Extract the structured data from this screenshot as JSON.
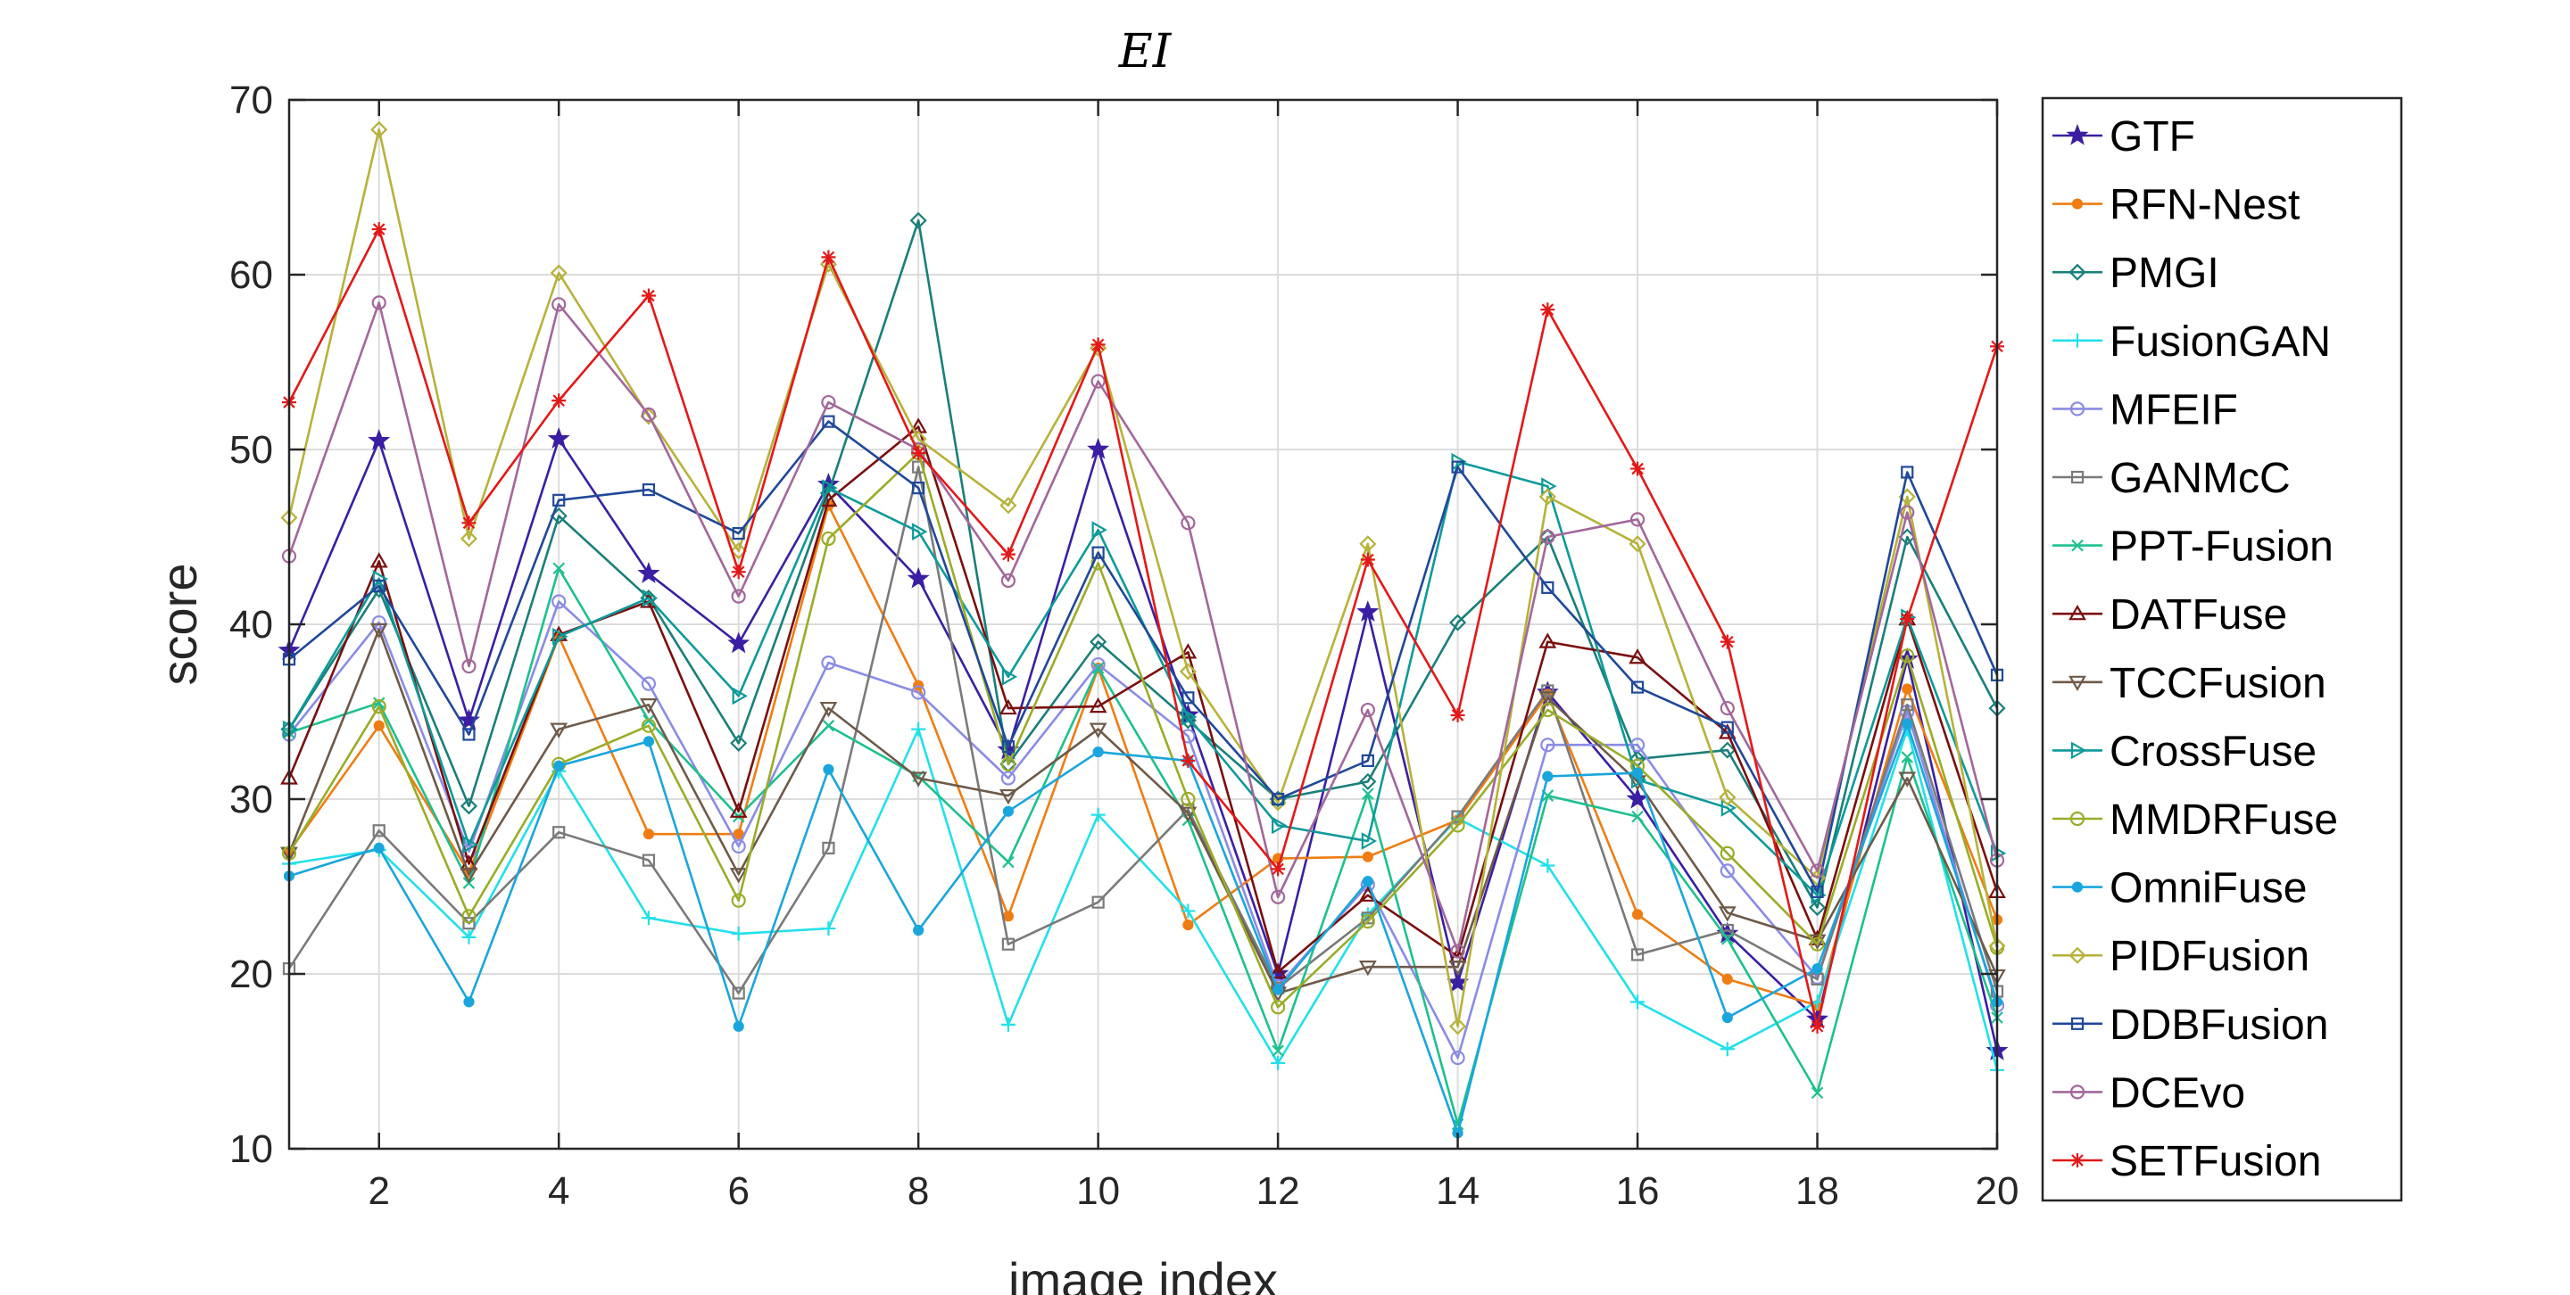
{
  "chart_data": {
    "type": "line",
    "title": "EI",
    "xlabel": "image index",
    "ylabel": "score",
    "xlim": [
      1,
      20
    ],
    "ylim": [
      10,
      70
    ],
    "xticks": [
      2,
      4,
      6,
      8,
      10,
      12,
      14,
      16,
      18,
      20
    ],
    "yticks": [
      10,
      20,
      30,
      40,
      50,
      60,
      70
    ],
    "grid": true,
    "legend_position": "outside-right",
    "x": [
      1,
      2,
      3,
      4,
      5,
      6,
      7,
      8,
      9,
      10,
      11,
      12,
      13,
      14,
      15,
      16,
      17,
      18,
      19,
      20
    ],
    "series": [
      {
        "name": "GTF",
        "color": "#3a1fa3",
        "marker": "star",
        "values": [
          38.5,
          50.5,
          34.5,
          50.6,
          42.9,
          38.9,
          48.0,
          42.6,
          32.8,
          50.0,
          34.8,
          20.0,
          40.7,
          19.5,
          36.1,
          30.0,
          22.3,
          17.4,
          38.0,
          15.6
        ]
      },
      {
        "name": "RFN-Nest",
        "color": "#ef7d13",
        "marker": "dot",
        "values": [
          27.0,
          34.2,
          25.8,
          39.3,
          28.0,
          28.0,
          46.8,
          36.5,
          23.3,
          37.5,
          22.8,
          26.6,
          26.7,
          28.8,
          36.0,
          23.4,
          19.7,
          18.2,
          36.3,
          23.1
        ]
      },
      {
        "name": "PMGI",
        "color": "#1a7f79",
        "marker": "diamond",
        "values": [
          34.0,
          42.0,
          29.6,
          46.2,
          41.5,
          33.2,
          47.5,
          63.1,
          32.0,
          39.0,
          34.5,
          30.0,
          31.0,
          40.1,
          45.0,
          32.3,
          32.8,
          23.8,
          45.0,
          35.2
        ]
      },
      {
        "name": "FusionGAN",
        "color": "#22e0ea",
        "marker": "plus",
        "values": [
          26.3,
          27.1,
          22.1,
          31.6,
          23.2,
          22.3,
          22.6,
          34.0,
          17.1,
          29.1,
          23.6,
          14.9,
          23.4,
          28.9,
          26.2,
          18.4,
          15.7,
          18.4,
          34.0,
          14.5
        ]
      },
      {
        "name": "MFEIF",
        "color": "#8b8be6",
        "marker": "circle",
        "values": [
          33.7,
          40.1,
          27.0,
          41.3,
          36.6,
          27.3,
          37.8,
          36.1,
          31.2,
          37.7,
          33.6,
          19.3,
          25.1,
          15.2,
          33.1,
          33.1,
          25.9,
          19.8,
          35.0,
          18.2
        ]
      },
      {
        "name": "GANMcC",
        "color": "#7a7a7a",
        "marker": "square",
        "values": [
          20.3,
          28.2,
          22.9,
          28.1,
          26.5,
          18.9,
          27.2,
          49.0,
          21.7,
          24.1,
          29.4,
          19.2,
          23.2,
          29.0,
          36.2,
          21.1,
          22.5,
          19.7,
          35.4,
          19.0
        ]
      },
      {
        "name": "PPT-Fusion",
        "color": "#1ec08f",
        "marker": "x",
        "values": [
          33.8,
          35.5,
          25.2,
          43.2,
          34.5,
          29.0,
          34.2,
          31.3,
          26.4,
          37.5,
          28.8,
          15.6,
          30.3,
          11.4,
          30.2,
          29.0,
          22.0,
          13.2,
          32.4,
          17.5
        ]
      },
      {
        "name": "DATFuse",
        "color": "#7a0f0f",
        "marker": "triangle-up",
        "values": [
          31.2,
          43.6,
          26.3,
          39.4,
          41.3,
          29.3,
          47.1,
          51.3,
          35.2,
          35.3,
          38.4,
          20.1,
          24.5,
          21.0,
          39.0,
          38.1,
          33.8,
          22.0,
          40.3,
          24.7
        ]
      },
      {
        "name": "TCCFusion",
        "color": "#6e5a4a",
        "marker": "triangle-down",
        "values": [
          26.9,
          39.7,
          25.7,
          34.0,
          35.4,
          25.7,
          35.2,
          31.2,
          30.2,
          34.0,
          29.2,
          18.9,
          20.4,
          20.4,
          35.8,
          31.0,
          23.5,
          21.9,
          31.2,
          19.9
        ]
      },
      {
        "name": "CrossFuse",
        "color": "#0e9a9a",
        "marker": "triangle-right",
        "values": [
          34.0,
          42.6,
          27.4,
          39.3,
          41.5,
          35.9,
          47.8,
          45.3,
          37.0,
          45.4,
          34.7,
          28.5,
          27.6,
          49.3,
          47.9,
          31.1,
          29.5,
          24.5,
          40.4,
          26.9
        ]
      },
      {
        "name": "MMDRFuse",
        "color": "#9aac28",
        "marker": "circle",
        "values": [
          26.9,
          35.3,
          23.3,
          32.0,
          34.2,
          24.2,
          44.9,
          49.8,
          32.0,
          43.5,
          30.0,
          18.1,
          23.0,
          28.5,
          35.1,
          31.9,
          26.9,
          21.7,
          38.2,
          21.5
        ]
      },
      {
        "name": "OmniFuse",
        "color": "#1aa6dc",
        "marker": "dot",
        "values": [
          25.6,
          27.2,
          18.4,
          31.9,
          33.3,
          17.0,
          31.7,
          22.5,
          29.3,
          32.7,
          32.2,
          19.1,
          25.3,
          10.9,
          31.3,
          31.5,
          17.5,
          20.3,
          34.3,
          18.4
        ]
      },
      {
        "name": "PIDFusion",
        "color": "#b6b23a",
        "marker": "diamond",
        "values": [
          46.1,
          68.3,
          44.9,
          60.1,
          51.9,
          44.2,
          60.6,
          50.6,
          46.8,
          55.8,
          37.3,
          29.8,
          44.6,
          17.0,
          47.3,
          44.6,
          30.1,
          25.5,
          47.3,
          21.6
        ]
      },
      {
        "name": "DDBFusion",
        "color": "#20489a",
        "marker": "square",
        "values": [
          38.0,
          42.2,
          33.7,
          47.1,
          47.7,
          45.2,
          51.6,
          47.8,
          33.0,
          44.1,
          35.8,
          30.0,
          32.2,
          49.0,
          42.1,
          36.4,
          34.1,
          24.7,
          48.7,
          37.1
        ]
      },
      {
        "name": "DCEvo",
        "color": "#a3679a",
        "marker": "circle",
        "values": [
          43.9,
          58.4,
          37.6,
          58.3,
          52.0,
          41.6,
          52.7,
          50.0,
          42.5,
          53.9,
          45.8,
          24.4,
          35.1,
          21.3,
          45.0,
          46.0,
          35.2,
          25.9,
          46.4,
          26.5
        ]
      },
      {
        "name": "SETFusion",
        "color": "#e31818",
        "marker": "asterisk",
        "values": [
          52.7,
          62.6,
          45.8,
          52.8,
          58.8,
          43.0,
          61.0,
          49.8,
          44.0,
          56.0,
          32.2,
          26.0,
          43.7,
          34.8,
          58.0,
          48.9,
          39.0,
          17.0,
          40.3,
          55.9
        ]
      }
    ]
  }
}
